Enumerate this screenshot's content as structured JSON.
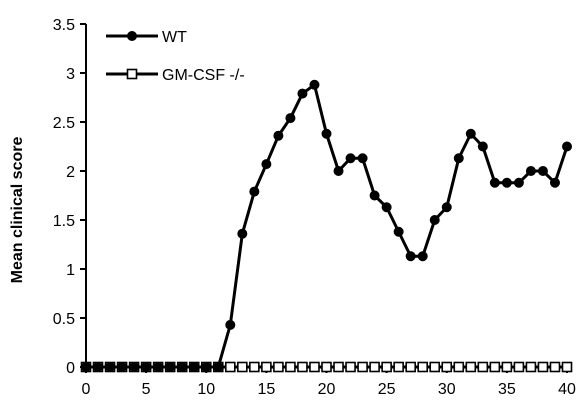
{
  "chart_data": {
    "type": "line",
    "title": "",
    "xlabel": "",
    "ylabel": "Mean clinical score",
    "xlim": [
      0,
      40
    ],
    "ylim": [
      0,
      3.5
    ],
    "x_ticks": [
      "0",
      "5",
      "10",
      "15",
      "20",
      "25",
      "30",
      "35",
      "40"
    ],
    "y_ticks": [
      "0",
      "0.5",
      "1",
      "1.5",
      "2",
      "2.5",
      "3",
      "3.5"
    ],
    "grid": false,
    "legend_position": "top-left",
    "series": [
      {
        "name": "WT",
        "marker": "filled-circle",
        "color": "#000000",
        "x": [
          0,
          1,
          2,
          3,
          4,
          5,
          6,
          7,
          8,
          9,
          10,
          11,
          12,
          13,
          14,
          15,
          16,
          17,
          18,
          19,
          20,
          21,
          22,
          23,
          24,
          25,
          26,
          27,
          28,
          29,
          30,
          31,
          32,
          33,
          34,
          35,
          36,
          37,
          38,
          39,
          40
        ],
        "y": [
          0,
          0,
          0,
          0,
          0,
          0,
          0,
          0,
          0,
          0,
          0,
          0,
          0.43,
          1.36,
          1.79,
          2.07,
          2.36,
          2.54,
          2.79,
          2.88,
          2.38,
          2.0,
          2.13,
          2.13,
          1.75,
          1.63,
          1.38,
          1.13,
          1.13,
          1.5,
          1.63,
          2.13,
          2.38,
          2.25,
          1.88,
          1.88,
          1.88,
          2.0,
          2.0,
          1.88,
          2.25
        ]
      },
      {
        "name": "GM-CSF -/-",
        "marker": "open-square",
        "color": "#000000",
        "x": [
          0,
          1,
          2,
          3,
          4,
          5,
          6,
          7,
          8,
          9,
          10,
          11,
          12,
          13,
          14,
          15,
          16,
          17,
          18,
          19,
          20,
          21,
          22,
          23,
          24,
          25,
          26,
          27,
          28,
          29,
          30,
          31,
          32,
          33,
          34,
          35,
          36,
          37,
          38,
          39,
          40
        ],
        "y": [
          0,
          0,
          0,
          0,
          0,
          0,
          0,
          0,
          0,
          0,
          0,
          0,
          0,
          0,
          0,
          0,
          0,
          0,
          0,
          0,
          0,
          0,
          0,
          0,
          0,
          0,
          0,
          0,
          0,
          0,
          0,
          0,
          0,
          0,
          0,
          0,
          0,
          0,
          0,
          0,
          0
        ]
      }
    ]
  }
}
